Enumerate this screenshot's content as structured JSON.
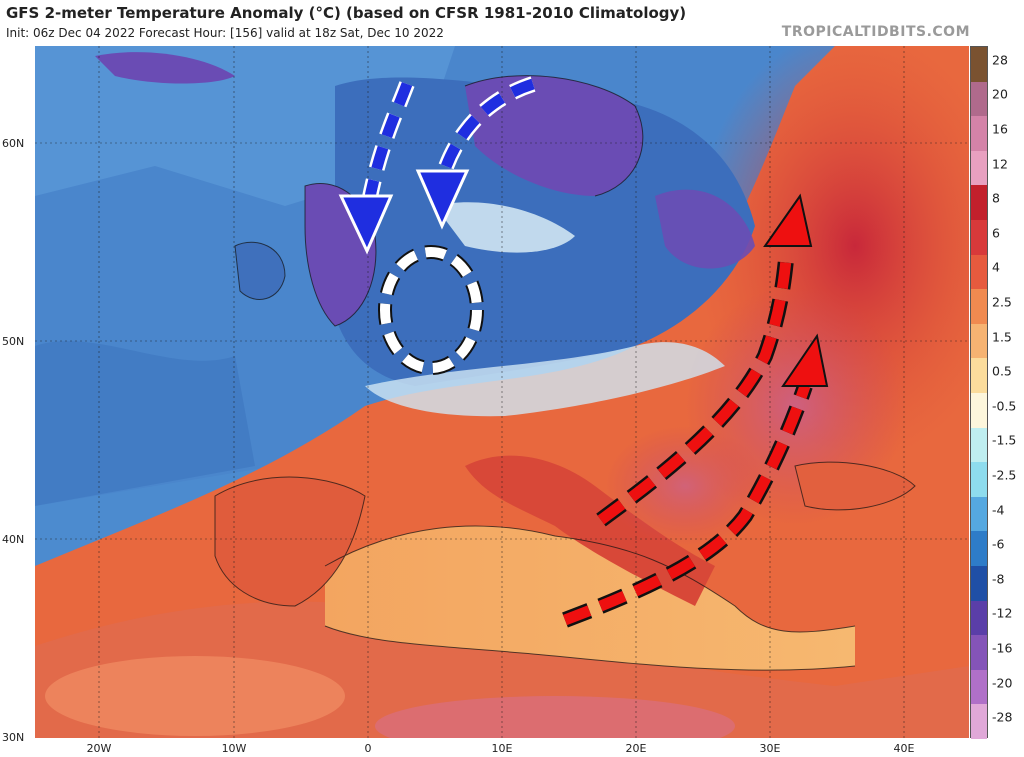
{
  "header": {
    "title": "GFS 2-meter Temperature Anomaly (°C) (based on CFSR 1981-2010 Climatology)",
    "subtitle": "Init: 06z Dec 04 2022   Forecast Hour: [156]   valid at 18z Sat, Dec 10 2022",
    "brand": "TROPICALTIDBITS.COM"
  },
  "axes": {
    "lat_labels": [
      "60N",
      "50N",
      "40N",
      "30N"
    ],
    "lon_labels": [
      "20W",
      "10W",
      "0",
      "10E",
      "20E",
      "30E",
      "40E"
    ]
  },
  "legend": {
    "labels": [
      "28",
      "20",
      "16",
      "12",
      "8",
      "6",
      "4",
      "2.5",
      "1.5",
      "0.5",
      "-0.5",
      "-1.5",
      "-2.5",
      "-4",
      "-6",
      "-8",
      "-12",
      "-16",
      "-20",
      "-28"
    ],
    "colors": [
      "#7a5230",
      "#b06a8c",
      "#d483a8",
      "#e8a0c0",
      "#c2202c",
      "#d8393a",
      "#e65a3e",
      "#f08a50",
      "#f6b372",
      "#fbdc9c",
      "#fdf6dc",
      "#bfeef0",
      "#8edcee",
      "#55a8e0",
      "#2e7cc8",
      "#1f4fa6",
      "#5a3ea8",
      "#8454b8",
      "#b070c8",
      "#e0a8d8"
    ]
  },
  "annotations": {
    "blue_arrows": "cold air flow",
    "red_arrows": "warm air flow",
    "circle": "highlighted region"
  },
  "colors": {
    "blue_arrow": "#1f2ee0",
    "red_arrow": "#ee1010",
    "ocean_cold": "#4a86cc",
    "warm": "#e05a3a"
  }
}
